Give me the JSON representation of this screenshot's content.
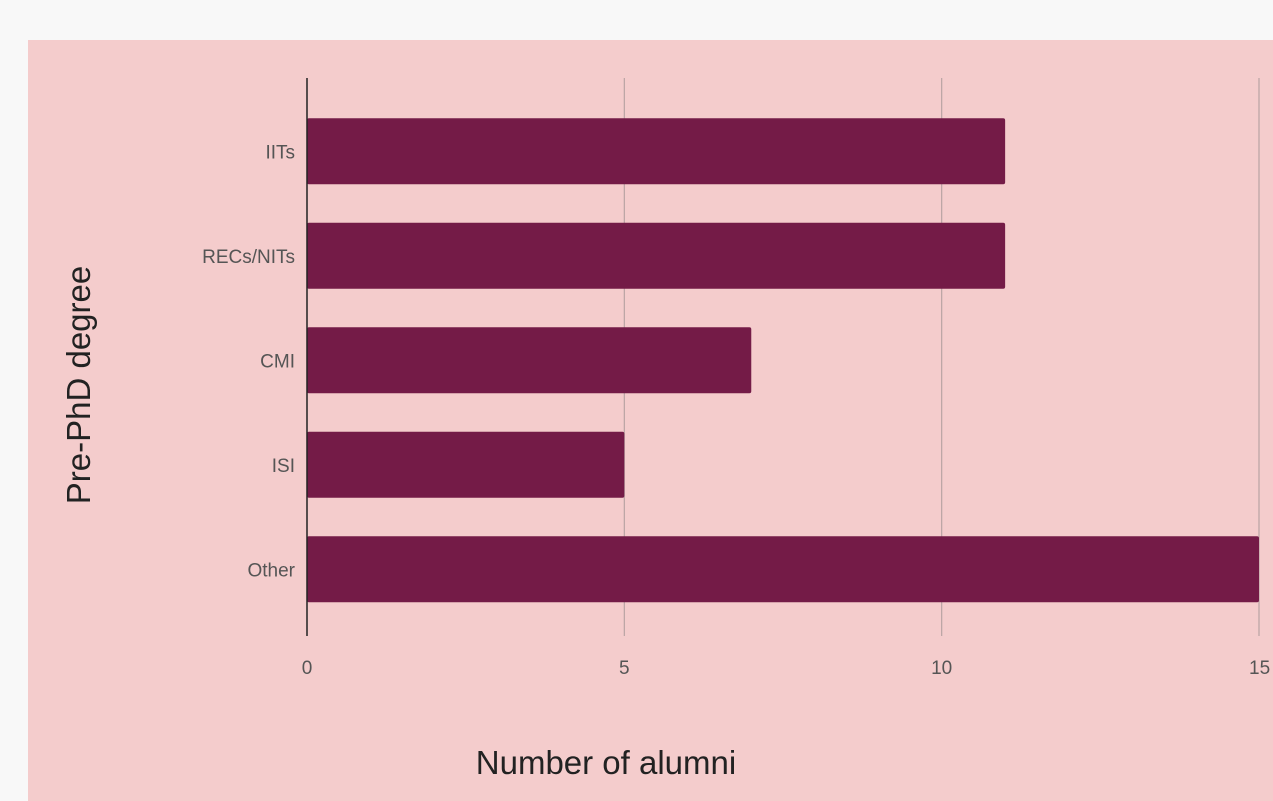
{
  "chart_data": {
    "type": "bar",
    "orientation": "horizontal",
    "categories": [
      "IITs",
      "RECs/NITs",
      "CMI",
      "ISI",
      "Other"
    ],
    "values": [
      11,
      11,
      7,
      5,
      15
    ],
    "xlabel": "Number of alumni",
    "ylabel": "Pre-PhD degree",
    "xlim": [
      0,
      15
    ],
    "xticks": [
      "0",
      "5",
      "10",
      "15"
    ],
    "grid": "vertical",
    "legend": "none"
  },
  "colors": {
    "panel_background": "#f4cccc",
    "bar": "#741b47",
    "gridline": "#b9a3a3",
    "axis": "#222222",
    "page_background": "#f8f8f8"
  }
}
